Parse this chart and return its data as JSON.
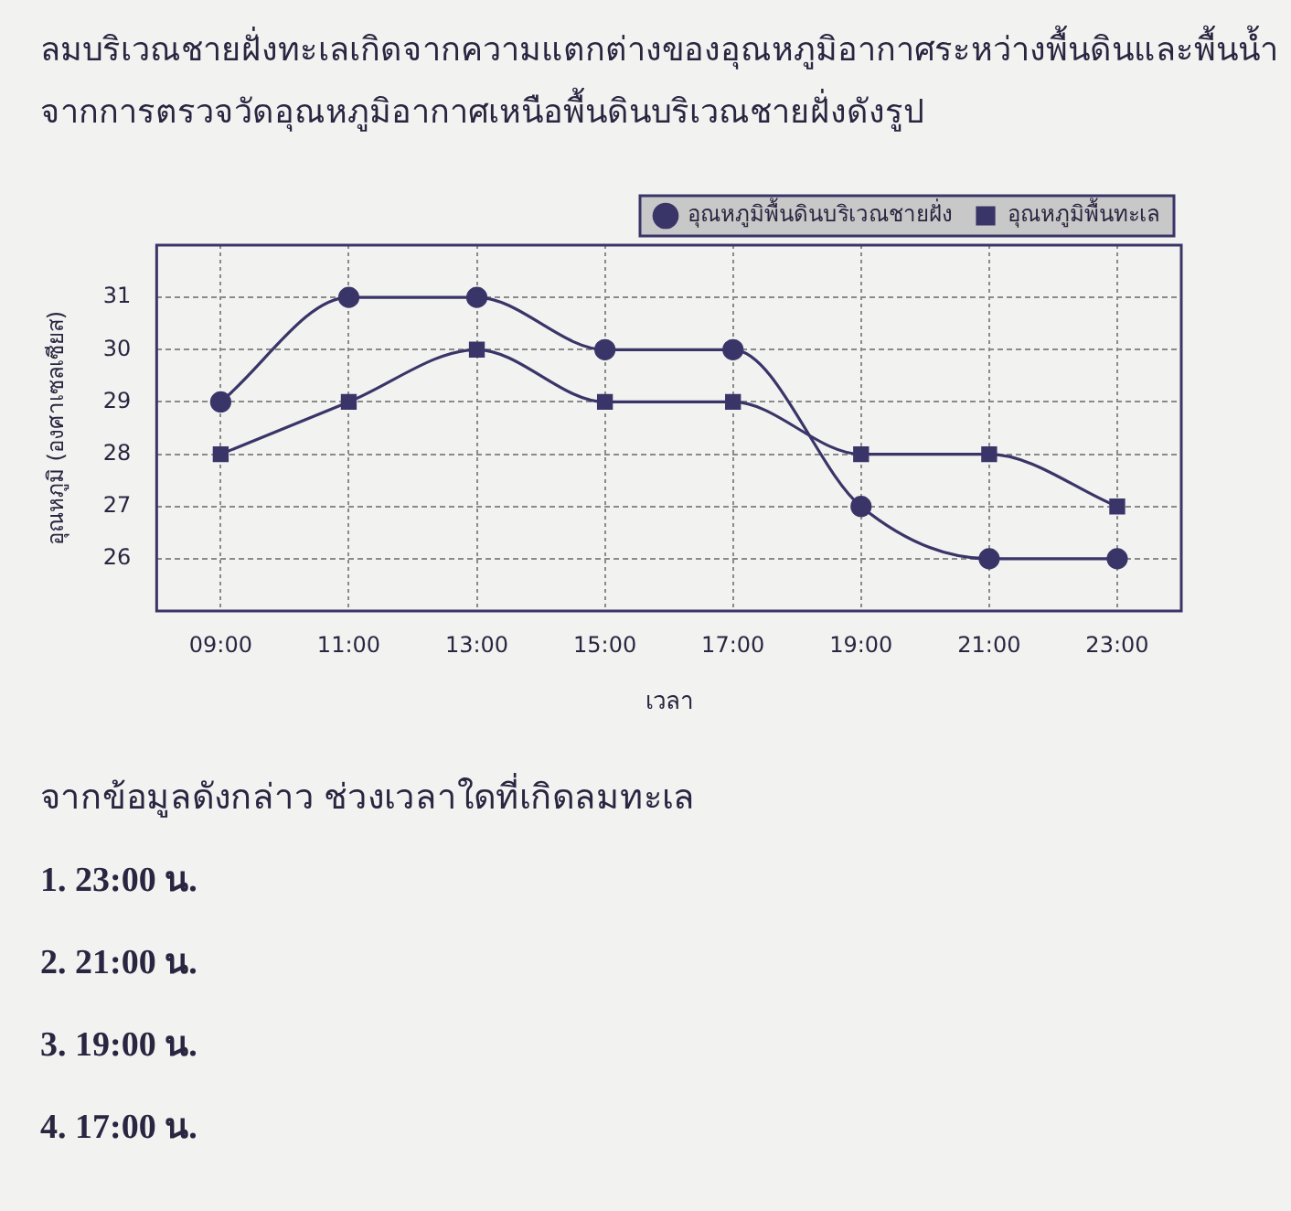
{
  "chart_data": {
    "type": "line",
    "title": "ลมบริเวณชายฝั่งทะเลเกิดจากความแตกต่างของอุณหภูมิอากาศระหว่างพื้นดินและพื้นน้ำ จากการตรวจวัดอุณหภูมิอากาศเหนือพื้นดินบริเวณชายฝั่งดังรูป",
    "xlabel": "เวลา",
    "ylabel": "อุณหภูมิ (องศาเซลเซียส)",
    "categories": [
      "09:00",
      "11:00",
      "13:00",
      "15:00",
      "17:00",
      "19:00",
      "21:00",
      "23:00"
    ],
    "series": [
      {
        "name": "อุณหภูมิพื้นดินบริเวณชายฝั่ง",
        "color": "#3a3568",
        "marker": "circle",
        "values": [
          29,
          31,
          31,
          30,
          30,
          27,
          26,
          26
        ]
      },
      {
        "name": "อุณหภูมิพื้นทะเล",
        "color": "#3a3568",
        "marker": "square",
        "values": [
          28,
          29,
          30,
          29,
          29,
          28,
          28,
          27
        ]
      }
    ],
    "ylim": [
      25,
      32
    ],
    "yticks": [
      26,
      27,
      28,
      29,
      30,
      31
    ],
    "grid": true,
    "legend": "top right",
    "annotations": [
      "จากข้อมูลดังกล่าว ช่วงเวลาใดที่เกิดลมทะเล",
      "1.   23:00 น.",
      "2.   21:00 น.",
      "3.   19:00 น.",
      "4.   17:00 น."
    ]
  }
}
